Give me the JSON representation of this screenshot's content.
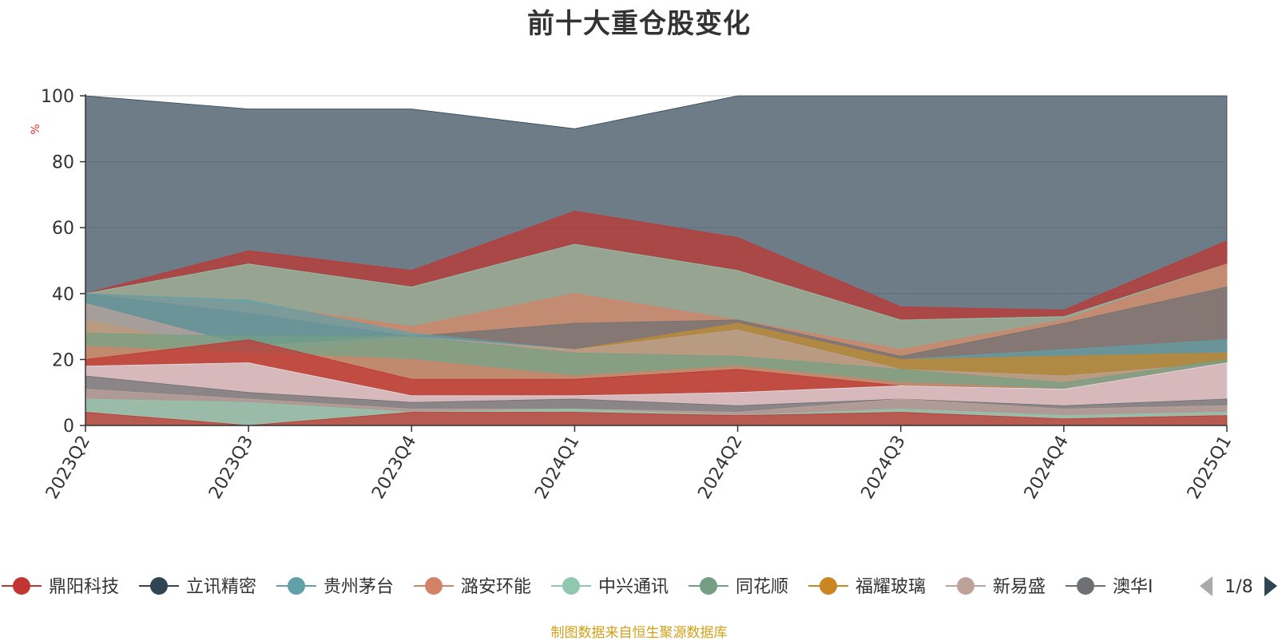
{
  "chart_data": {
    "type": "area",
    "title": "前十大重仓股变化",
    "ylabel": "%",
    "ylim": [
      0,
      100
    ],
    "yticks": [
      0,
      20,
      40,
      60,
      80,
      100
    ],
    "categories": [
      "2023Q2",
      "2023Q3",
      "2023Q4",
      "2024Q1",
      "2024Q2",
      "2024Q3",
      "2024Q4",
      "2025Q1"
    ],
    "legend": {
      "position": "bottom",
      "page_indicator": "1/8",
      "items": [
        {
          "name": "鼎阳科技",
          "color": "#c23531"
        },
        {
          "name": "立讯精密",
          "color": "#2f4554"
        },
        {
          "name": "贵州茅台",
          "color": "#61a0a8"
        },
        {
          "name": "潞安环能",
          "color": "#d48265"
        },
        {
          "name": "中兴通讯",
          "color": "#91c7ae"
        },
        {
          "name": "同花顺",
          "color": "#749f83"
        },
        {
          "name": "福耀玻璃",
          "color": "#ca8622"
        },
        {
          "name": "新易盛",
          "color": "#bda29a"
        },
        {
          "name": "澳华I",
          "color": "#6e7074"
        }
      ]
    },
    "series": [
      {
        "color": "#2f4554",
        "values": [
          100,
          96,
          96,
          90,
          100,
          100,
          100,
          100
        ]
      },
      {
        "color": "#c23531",
        "values": [
          40,
          53,
          47,
          65,
          57,
          36,
          35,
          56
        ]
      },
      {
        "color": "#91c7ae",
        "values": [
          40,
          49,
          42,
          55,
          47,
          32,
          33,
          49
        ]
      },
      {
        "color": "#d48265",
        "values": [
          40,
          37,
          30,
          40,
          32,
          23,
          32,
          49
        ]
      },
      {
        "color": "#6e7074",
        "values": [
          40,
          34,
          27,
          31,
          32,
          21,
          31,
          42
        ]
      },
      {
        "color": "#61a0a8",
        "values": [
          40,
          38,
          28,
          23,
          31,
          20,
          23,
          26
        ]
      },
      {
        "color": "#ca8622",
        "values": [
          32,
          22,
          26,
          23,
          31,
          20,
          21,
          22
        ]
      },
      {
        "color": "#bda29a",
        "values": [
          37,
          24,
          27,
          23,
          29,
          17,
          15,
          19
        ]
      },
      {
        "color": "#749f83",
        "values": [
          28,
          27,
          27,
          22,
          21,
          17,
          13,
          20
        ]
      },
      {
        "color": "#d48265",
        "values": [
          24,
          22,
          20,
          15,
          18,
          13,
          11,
          19
        ]
      },
      {
        "color": "#c23531",
        "values": [
          20,
          26,
          14,
          14,
          17,
          12,
          11,
          19
        ]
      },
      {
        "color": "#dfe3ea",
        "values": [
          18,
          19,
          9,
          9,
          10,
          12,
          11,
          19
        ]
      },
      {
        "color": "#6e7074",
        "values": [
          15,
          10,
          7,
          8,
          6,
          8,
          6,
          8
        ]
      },
      {
        "color": "#bda29a",
        "values": [
          11,
          8,
          5,
          5,
          4,
          8,
          5,
          6
        ]
      },
      {
        "color": "#91c7ae",
        "values": [
          8,
          7,
          4,
          5,
          3,
          5,
          3,
          4
        ]
      },
      {
        "color": "#c23531",
        "values": [
          4,
          0,
          4,
          4,
          3,
          4,
          2,
          3
        ]
      }
    ]
  },
  "footer": "制图数据来自恒生聚源数据库"
}
